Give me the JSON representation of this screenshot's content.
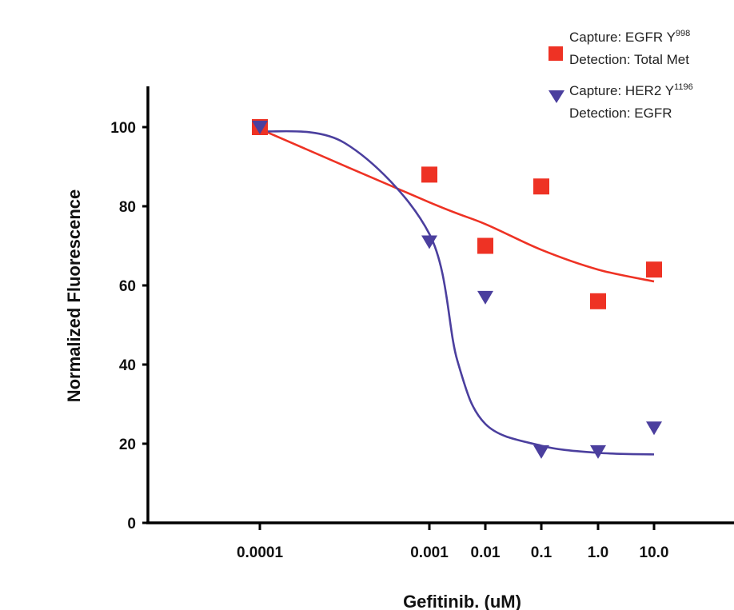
{
  "chart_data": {
    "type": "scatter",
    "xlabel": "Gefitinib. (uM)",
    "ylabel": "Normalized Fluorescence",
    "x_scale": "categorical-log",
    "x_categories": [
      "0.0001",
      "0.001",
      "0.01",
      "0.1",
      "1.0",
      "10.0"
    ],
    "ylim": [
      0,
      110
    ],
    "yticks": [
      "0",
      "20",
      "40",
      "60",
      "80",
      "100"
    ],
    "grid": false,
    "legend_position": "top-right",
    "series": [
      {
        "name_line1_prefix": "Capture: EGFR Y",
        "name_line1_sup": "998",
        "name_line2": "Detection: Total Met",
        "marker": "square",
        "color": "#ee3224",
        "points": [
          {
            "x": "0.0001",
            "y": 100
          },
          {
            "x": "0.001",
            "y": 88
          },
          {
            "x": "0.01",
            "y": 70
          },
          {
            "x": "0.1",
            "y": 85
          },
          {
            "x": "1.0",
            "y": 56
          },
          {
            "x": "10.0",
            "y": 64
          }
        ],
        "fit_curve": [
          [
            0,
            99.5
          ],
          [
            1,
            81
          ],
          [
            2,
            75.5
          ],
          [
            3,
            69
          ],
          [
            4,
            64
          ],
          [
            5,
            61
          ]
        ]
      },
      {
        "name_line1_prefix": "Capture: HER2 Y",
        "name_line1_sup": "1196",
        "name_line2": "Detection: EGFR",
        "marker": "triangle-down",
        "color": "#4b3f9e",
        "points": [
          {
            "x": "0.0001",
            "y": 100
          },
          {
            "x": "0.001",
            "y": 71
          },
          {
            "x": "0.01",
            "y": 57
          },
          {
            "x": "0.1",
            "y": 18
          },
          {
            "x": "1.0",
            "y": 18
          },
          {
            "x": "10.0",
            "y": 24
          }
        ],
        "fit_curve": [
          [
            0,
            99
          ],
          [
            0.5,
            96
          ],
          [
            1,
            73
          ],
          [
            1.5,
            41
          ],
          [
            2,
            25
          ],
          [
            3,
            19.5
          ],
          [
            4,
            17.7
          ],
          [
            5,
            17.3
          ]
        ]
      }
    ]
  }
}
